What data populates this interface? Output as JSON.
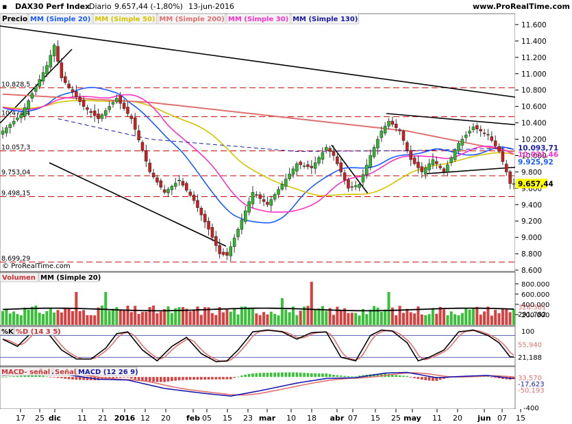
{
  "header": {
    "instrument": "DAX30 Perf Index",
    "period": "Diario",
    "quote": "9.657,44 (-1,80%)",
    "date": "13-jun-2016",
    "site": "www.ProRealTime.com",
    "legend": [
      {
        "label": "MM (Simple 20)",
        "color": "#1a5cff"
      },
      {
        "label": "MM (Simple 50)",
        "color": "#d4c400"
      },
      {
        "label": "MM (Simple 200)",
        "color": "#e07070"
      },
      {
        "label": "MM (Simple 30)",
        "color": "#ff30c8"
      },
      {
        "label": "MM (Simple 130)",
        "color": "#1a1aaa"
      }
    ]
  },
  "chart_data": [
    {
      "type": "candlestick",
      "title": "Precio",
      "copyright": "© ProRealTime.com",
      "ylim": [
        8600,
        11700
      ],
      "yticks": [
        8600,
        8800,
        9000,
        9200,
        9400,
        9600,
        9800,
        10000,
        10200,
        10400,
        10600,
        10800,
        11000,
        11200,
        11400,
        11600
      ],
      "ytick_labels": [
        "8.600",
        "8.800",
        "9.000",
        "9.200",
        "9.400",
        "9.600",
        "9.800",
        "10.000",
        "10.200",
        "10.400",
        "10.600",
        "10.800",
        "11.000",
        "11.200",
        "11.400",
        "11.600"
      ],
      "levels": [
        {
          "value": 10828.5,
          "label": "10.828,5"
        },
        {
          "value": 10474.4,
          "label": "10.474,4"
        },
        {
          "value": 10057.3,
          "label": "10.057,3"
        },
        {
          "value": 9753.04,
          "label": "9.753,04"
        },
        {
          "value": 9498.15,
          "label": "9.498,15"
        },
        {
          "value": 8699.29,
          "label": "8.699,29"
        }
      ],
      "price_tags": [
        {
          "value": 10093.71,
          "label": "10.093,71",
          "color": "#1a1aaa"
        },
        {
          "value": 10031.46,
          "label": "10.031,46",
          "color": "#ff30c8"
        },
        {
          "value": 9925.92,
          "label": "9.925,92",
          "color": "#1a5cff"
        },
        {
          "value": 9657.44,
          "label": "9.657,44",
          "color": "#000000",
          "background": "#ffff00"
        }
      ],
      "last_close": 9657.44
    },
    {
      "type": "bar",
      "title": "Volumen",
      "overlay": "MM (Simple 20)",
      "ylim": [
        0,
        1000000
      ],
      "yticks": [
        200000,
        400000,
        600000,
        800000
      ],
      "ytick_labels": [
        "200.000",
        "400.000",
        "600.000",
        "800.000"
      ],
      "tags": [
        {
          "value": 328581,
          "label": "328.581",
          "color": "#e07070"
        },
        {
          "value": 291782,
          "label": "291.782",
          "color": "#000000"
        }
      ]
    },
    {
      "type": "line",
      "title": "%K",
      "series_names": [
        "%K",
        "%D (14 3 5)"
      ],
      "ylim": [
        0,
        100
      ],
      "yticks": [
        0,
        100
      ],
      "ytick_labels": [
        "",
        "100"
      ],
      "tags": [
        {
          "value": 55.94,
          "label": "55,940",
          "color": "#e07070"
        },
        {
          "value": 21.188,
          "label": "21,188",
          "color": "#000000"
        }
      ]
    },
    {
      "type": "line",
      "title": "MACD",
      "series_names": [
        "MACD- señal",
        "Señal",
        "MACD (12 26 9)"
      ],
      "ylim": [
        -400,
        100
      ],
      "yticks": [
        -400
      ],
      "ytick_labels": [
        "-400"
      ],
      "tags": [
        {
          "value": 33.57,
          "label": "33,570",
          "color": "#e07070"
        },
        {
          "value": -17.623,
          "label": "-17,623",
          "color": "#1a1aaa"
        },
        {
          "value": -50.193,
          "label": "-50,193",
          "color": "#e07070"
        }
      ]
    }
  ],
  "x_axis": {
    "labels": [
      "17",
      "25",
      "dic",
      "11",
      "21",
      "2016",
      "12",
      "20",
      "feb",
      "05",
      "15",
      "23",
      "mar",
      "10",
      "18",
      "abr",
      "07",
      "15",
      "25",
      "may",
      "11",
      "20",
      "jun",
      "07",
      "15"
    ],
    "bold": [
      "dic",
      "2016",
      "feb",
      "mar",
      "abr",
      "may",
      "jun"
    ]
  }
}
